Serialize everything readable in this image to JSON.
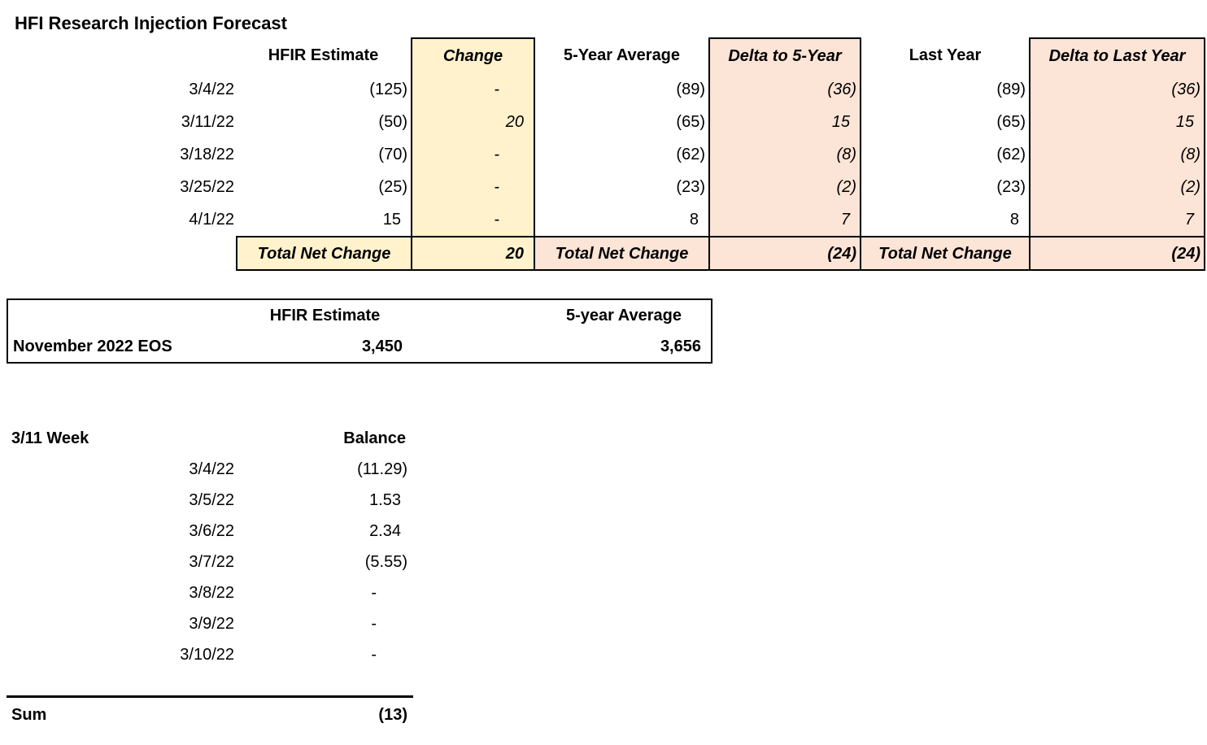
{
  "title": "HFI Research Injection Forecast",
  "colors": {
    "yellow_highlight": "#FFF2CC",
    "pink_highlight": "#FCE4D6",
    "border": "#000000",
    "text": "#000000",
    "background": "#FFFFFF"
  },
  "forecast_table": {
    "headers": {
      "date": "",
      "hfir": "HFIR Estimate",
      "change": "Change",
      "avg5": "5-Year Average",
      "delta5": "Delta to 5-Year",
      "last_year": "Last Year",
      "delta_last": "Delta to Last Year"
    },
    "rows": [
      {
        "date": "3/4/22",
        "hfir": "(125)",
        "change": "-",
        "avg5": "(89)",
        "delta5": "(36)",
        "last_year": "(89)",
        "delta_last": "(36)"
      },
      {
        "date": "3/11/22",
        "hfir": "(50)",
        "change": "20",
        "avg5": "(65)",
        "delta5": "15",
        "last_year": "(65)",
        "delta_last": "15"
      },
      {
        "date": "3/18/22",
        "hfir": "(70)",
        "change": "-",
        "avg5": "(62)",
        "delta5": "(8)",
        "last_year": "(62)",
        "delta_last": "(8)"
      },
      {
        "date": "3/25/22",
        "hfir": "(25)",
        "change": "-",
        "avg5": "(23)",
        "delta5": "(2)",
        "last_year": "(23)",
        "delta_last": "(2)"
      },
      {
        "date": "4/1/22",
        "hfir": "15",
        "change": "-",
        "avg5": "8",
        "delta5": "7",
        "last_year": "8",
        "delta_last": "7"
      }
    ],
    "total": {
      "label1": "Total Net Change",
      "value1": "20",
      "label2": "Total Net Change",
      "value2": "(24)",
      "label3": "Total Net Change",
      "value3": "(24)"
    }
  },
  "eos_table": {
    "headers": {
      "hfir": "HFIR Estimate",
      "avg5": "5-year Average"
    },
    "row": {
      "label": "November 2022 EOS",
      "hfir": "3,450",
      "avg5": "3,656"
    }
  },
  "week_table": {
    "title": "3/11 Week",
    "balance_header": "Balance",
    "rows": [
      {
        "date": "3/4/22",
        "balance": "(11.29)"
      },
      {
        "date": "3/5/22",
        "balance": "1.53"
      },
      {
        "date": "3/6/22",
        "balance": "2.34"
      },
      {
        "date": "3/7/22",
        "balance": "(5.55)"
      },
      {
        "date": "3/8/22",
        "balance": "-"
      },
      {
        "date": "3/9/22",
        "balance": "-"
      },
      {
        "date": "3/10/22",
        "balance": "-"
      }
    ],
    "sum": {
      "label": "Sum",
      "value": "(13)"
    }
  }
}
